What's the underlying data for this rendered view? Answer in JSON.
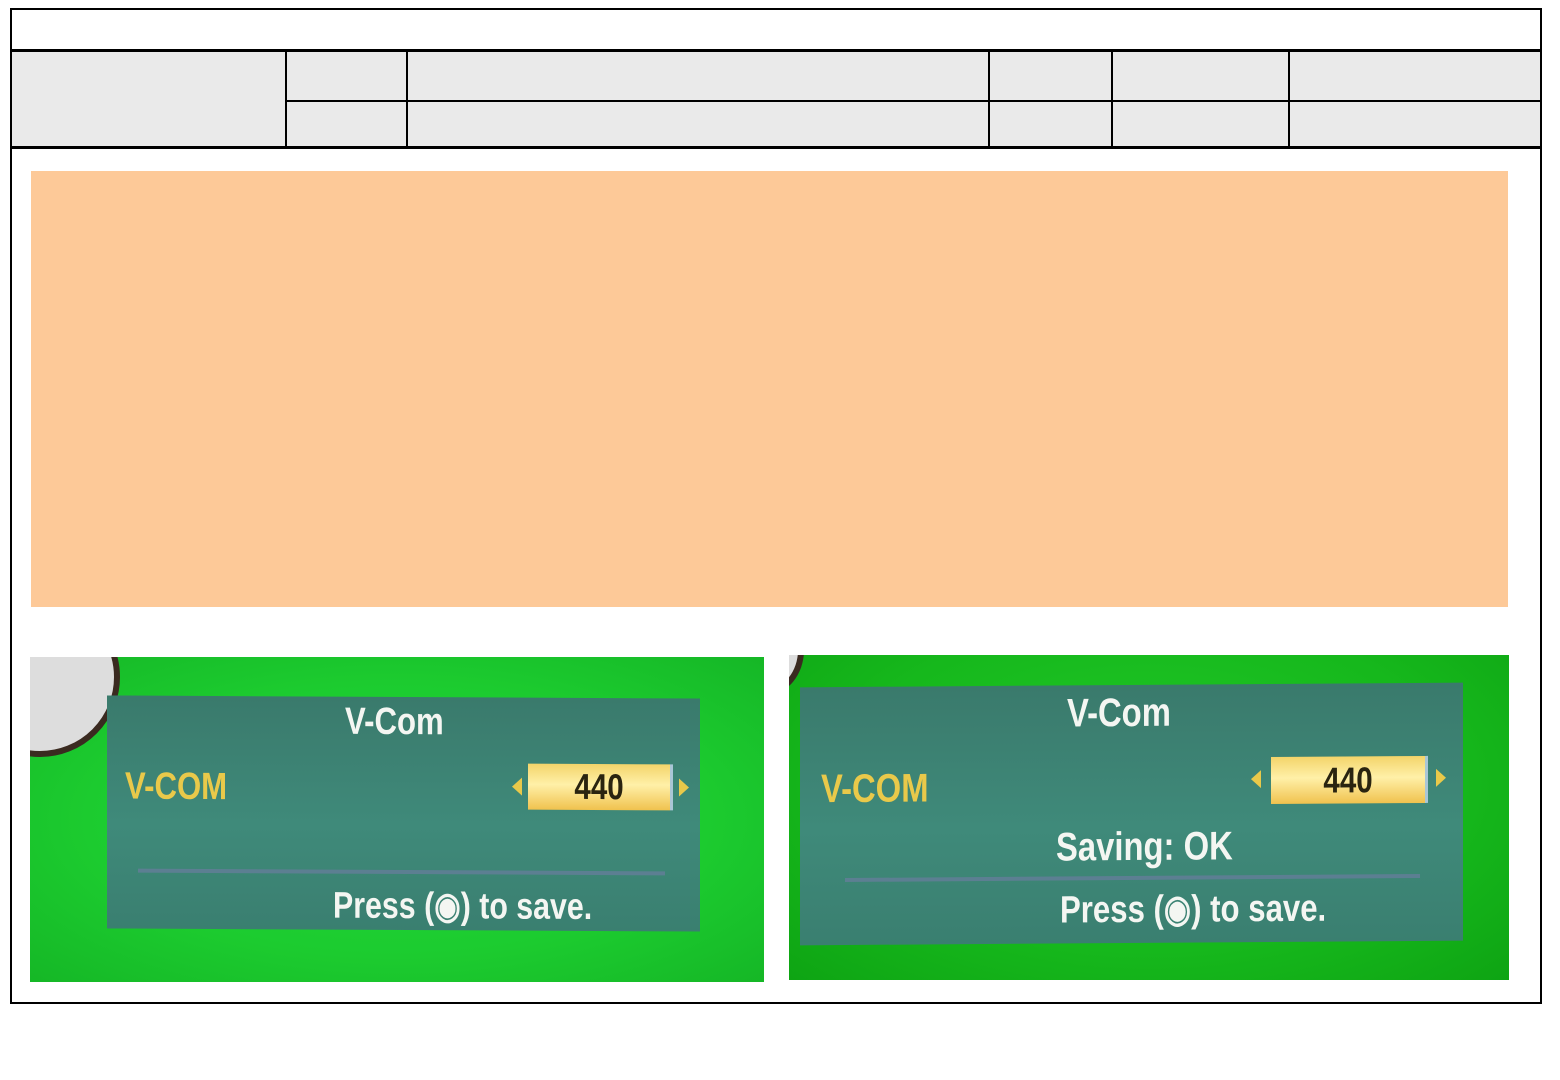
{
  "document": {
    "title": "",
    "header_rows": [
      [
        "",
        "",
        "",
        "",
        "",
        ""
      ],
      [
        "",
        "",
        "",
        "",
        ""
      ]
    ],
    "highlight_box_color": "#fdc998"
  },
  "photos": [
    {
      "osd_title": "V-Com",
      "item_label": "V-COM",
      "value": "440",
      "status": "",
      "footer_pre": "Press (",
      "footer_icon": "ok-button-icon",
      "footer_post": ") to save."
    },
    {
      "osd_title": "V-Com",
      "item_label": "V-COM",
      "value": "440",
      "status": "Saving: OK",
      "footer_pre": "Press (",
      "footer_icon": "ok-button-icon",
      "footer_post": ") to save."
    }
  ],
  "colors": {
    "screen_green": "#1ccb2f",
    "osd_panel": "#3f8a7a",
    "label_yellow": "#e9c94a",
    "value_box": "#f3d46a"
  }
}
